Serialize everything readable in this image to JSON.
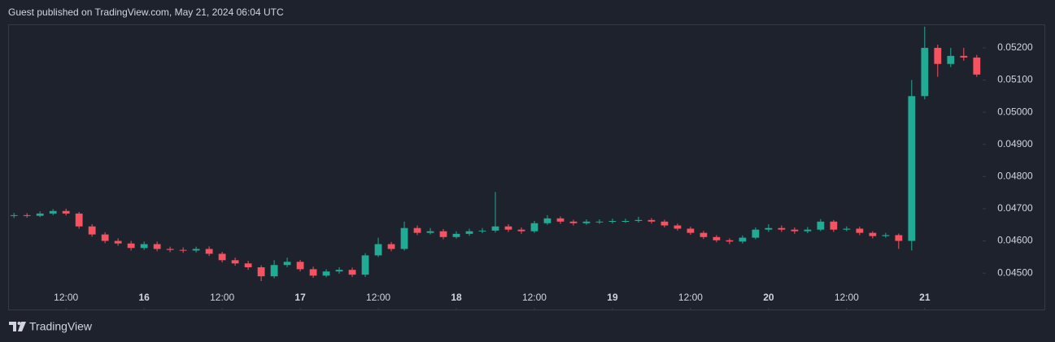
{
  "header": {
    "text": "Guest published on TradingView.com, May 21, 2024 06:04 UTC"
  },
  "footer": {
    "brand": "TradingView"
  },
  "chart_data": {
    "type": "candlestick",
    "up_color": "#22ab94",
    "down_color": "#f7525f",
    "x": [
      -20,
      -18,
      -16,
      -14,
      -12,
      -10,
      -8,
      -6,
      -4,
      -2,
      0,
      2,
      4,
      6,
      8,
      10,
      12,
      14,
      16,
      18,
      20,
      22,
      24,
      26,
      28,
      30,
      32,
      34,
      36,
      38,
      40,
      42,
      44,
      46,
      48,
      50,
      52,
      54,
      56,
      58,
      60,
      62,
      64,
      66,
      68,
      70,
      72,
      74,
      76,
      78,
      80,
      82,
      84,
      86,
      88,
      90,
      92,
      94,
      96,
      98,
      100,
      102,
      104,
      106,
      108,
      110,
      112,
      114,
      116,
      118,
      120,
      122,
      124,
      126,
      128
    ],
    "open": [
      0.04678,
      0.0468,
      0.04678,
      0.04685,
      0.04693,
      0.04685,
      0.04645,
      0.0462,
      0.046,
      0.04592,
      0.04578,
      0.0459,
      0.04575,
      0.04572,
      0.0457,
      0.04575,
      0.0456,
      0.0454,
      0.0453,
      0.04518,
      0.0449,
      0.04525,
      0.04535,
      0.04512,
      0.04492,
      0.04505,
      0.0451,
      0.04495,
      0.04555,
      0.0459,
      0.04575,
      0.0464,
      0.04625,
      0.0463,
      0.04612,
      0.04622,
      0.0463,
      0.04632,
      0.04645,
      0.04635,
      0.0463,
      0.04655,
      0.0467,
      0.0466,
      0.04655,
      0.0466,
      0.0466,
      0.04662,
      0.04662,
      0.04665,
      0.0466,
      0.04648,
      0.04638,
      0.04625,
      0.04612,
      0.04602,
      0.04598,
      0.0461,
      0.04635,
      0.0464,
      0.04635,
      0.0463,
      0.04635,
      0.0466,
      0.04635,
      0.04638,
      0.04625,
      0.04615,
      0.04618,
      0.046,
      0.0505,
      0.052,
      0.0515,
      0.05175,
      0.0517
    ],
    "high": [
      0.04687,
      0.04686,
      0.04692,
      0.04699,
      0.047,
      0.0469,
      0.04652,
      0.04627,
      0.04608,
      0.046,
      0.04598,
      0.04598,
      0.04582,
      0.0458,
      0.04582,
      0.04583,
      0.04566,
      0.04548,
      0.04538,
      0.04524,
      0.0454,
      0.04548,
      0.04541,
      0.0452,
      0.04512,
      0.04518,
      0.04517,
      0.04562,
      0.0461,
      0.04597,
      0.0466,
      0.04648,
      0.0464,
      0.04637,
      0.0463,
      0.04638,
      0.0464,
      0.04752,
      0.04652,
      0.04642,
      0.04662,
      0.0468,
      0.04676,
      0.04666,
      0.04667,
      0.04667,
      0.04669,
      0.04669,
      0.04675,
      0.04671,
      0.04666,
      0.04654,
      0.04644,
      0.04631,
      0.04618,
      0.04608,
      0.04617,
      0.04642,
      0.04652,
      0.04648,
      0.04642,
      0.04643,
      0.04668,
      0.04665,
      0.04645,
      0.04644,
      0.0463,
      0.04625,
      0.04623,
      0.051,
      0.05266,
      0.0521,
      0.052,
      0.052,
      0.05178
    ],
    "low": [
      0.04671,
      0.04672,
      0.04674,
      0.0468,
      0.04679,
      0.04638,
      0.04613,
      0.04593,
      0.04585,
      0.0457,
      0.04572,
      0.04568,
      0.04565,
      0.04563,
      0.04564,
      0.04553,
      0.04533,
      0.04523,
      0.0451,
      0.04475,
      0.04484,
      0.04518,
      0.04505,
      0.04485,
      0.04487,
      0.04498,
      0.04488,
      0.04488,
      0.0455,
      0.04568,
      0.0457,
      0.04618,
      0.0462,
      0.04605,
      0.04607,
      0.04616,
      0.04624,
      0.04626,
      0.04628,
      0.04622,
      0.04625,
      0.0465,
      0.04653,
      0.04648,
      0.0465,
      0.04653,
      0.04654,
      0.04656,
      0.04657,
      0.04654,
      0.04642,
      0.04632,
      0.04619,
      0.04606,
      0.04596,
      0.0459,
      0.04592,
      0.04605,
      0.04628,
      0.04628,
      0.04622,
      0.04624,
      0.0463,
      0.04628,
      0.0463,
      0.04618,
      0.04608,
      0.0461,
      0.04575,
      0.0457,
      0.0504,
      0.0511,
      0.0514,
      0.0516,
      0.0511
    ],
    "close": [
      0.0468,
      0.04678,
      0.04685,
      0.04693,
      0.04685,
      0.04645,
      0.0462,
      0.046,
      0.04592,
      0.04578,
      0.0459,
      0.04575,
      0.04572,
      0.0457,
      0.04575,
      0.0456,
      0.0454,
      0.0453,
      0.04518,
      0.0449,
      0.04525,
      0.04535,
      0.04512,
      0.04492,
      0.04505,
      0.0451,
      0.04495,
      0.04555,
      0.0459,
      0.04575,
      0.0464,
      0.04625,
      0.0463,
      0.04612,
      0.04622,
      0.0463,
      0.04632,
      0.04645,
      0.04635,
      0.0463,
      0.04655,
      0.0467,
      0.0466,
      0.04655,
      0.0466,
      0.0466,
      0.04662,
      0.04662,
      0.04665,
      0.0466,
      0.04648,
      0.04638,
      0.04625,
      0.04612,
      0.04602,
      0.04598,
      0.0461,
      0.04635,
      0.0464,
      0.04635,
      0.0463,
      0.04635,
      0.0466,
      0.04635,
      0.04638,
      0.04625,
      0.04615,
      0.04618,
      0.046,
      0.0505,
      0.052,
      0.0515,
      0.05175,
      0.0517,
      0.05117
    ],
    "xlim": [
      -20.9,
      128.9
    ],
    "xticks": [
      {
        "value": -12,
        "label": "12:00"
      },
      {
        "value": 0,
        "label": "16"
      },
      {
        "value": 12,
        "label": "12:00"
      },
      {
        "value": 24,
        "label": "17"
      },
      {
        "value": 36,
        "label": "12:00"
      },
      {
        "value": 48,
        "label": "18"
      },
      {
        "value": 60,
        "label": "12:00"
      },
      {
        "value": 72,
        "label": "19"
      },
      {
        "value": 84,
        "label": "12:00"
      },
      {
        "value": 96,
        "label": "20"
      },
      {
        "value": 108,
        "label": "12:00"
      },
      {
        "value": 120,
        "label": "21"
      }
    ],
    "ylim": [
      0.0446,
      0.05273
    ],
    "yticks": [
      {
        "value": 0.045,
        "label": "0.04500"
      },
      {
        "value": 0.046,
        "label": "0.04600"
      },
      {
        "value": 0.047,
        "label": "0.04700"
      },
      {
        "value": 0.048,
        "label": "0.04800"
      },
      {
        "value": 0.049,
        "label": "0.04900"
      },
      {
        "value": 0.05,
        "label": "0.05000"
      },
      {
        "value": 0.051,
        "label": "0.05100"
      },
      {
        "value": 0.052,
        "label": "0.05200"
      }
    ]
  }
}
